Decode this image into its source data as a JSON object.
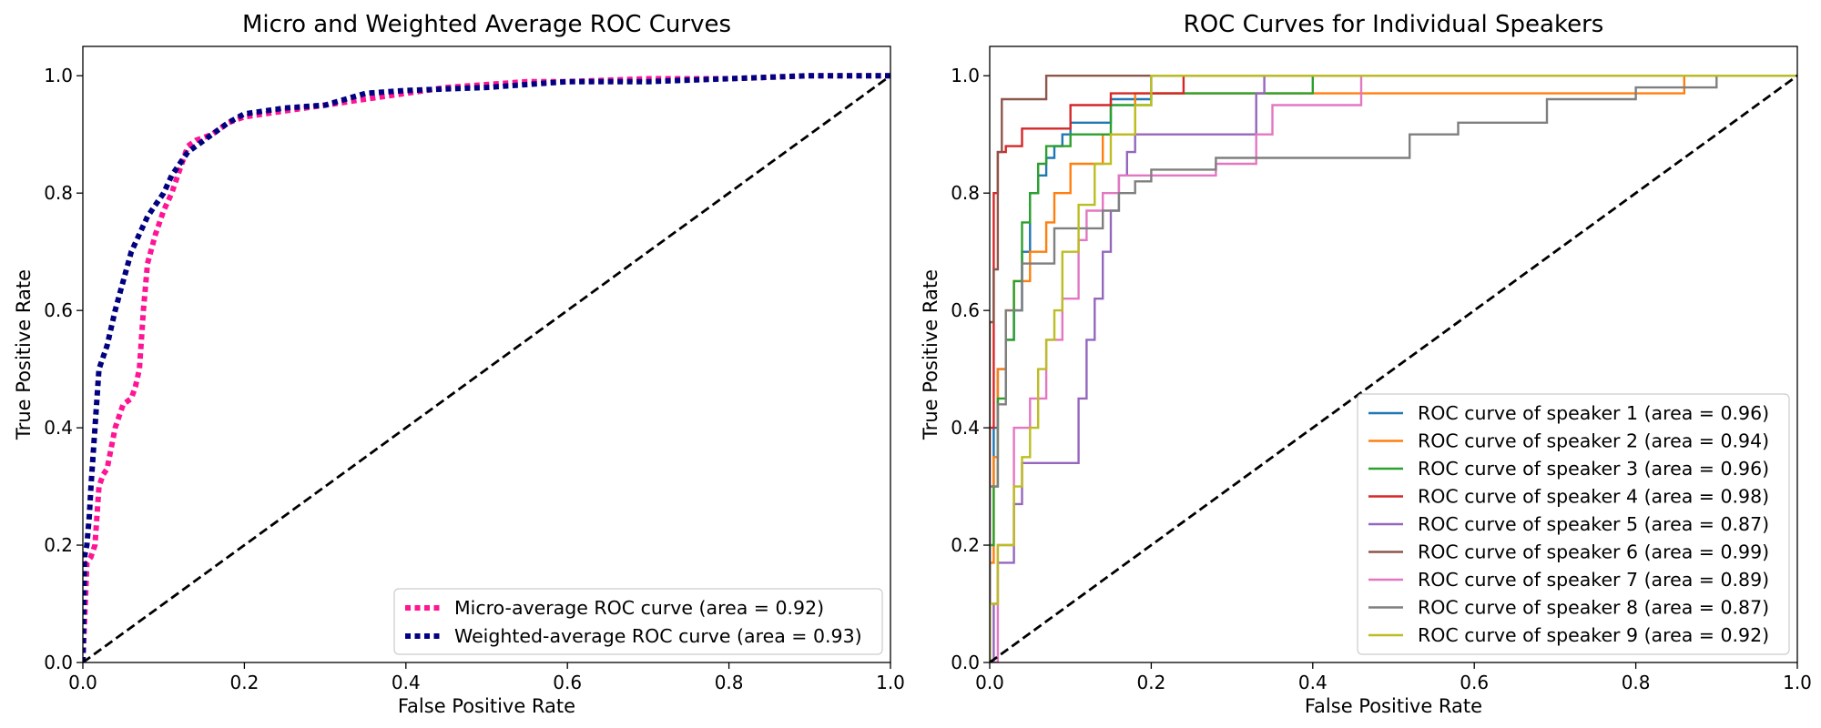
{
  "chart_data": [
    {
      "type": "line",
      "title": "Micro and Weighted Average ROC Curves",
      "xlabel": "False Positive Rate",
      "ylabel": "True Positive Rate",
      "xlim": [
        0.0,
        1.0
      ],
      "ylim": [
        0.0,
        1.05
      ],
      "xticks": [
        "0.0",
        "0.2",
        "0.4",
        "0.6",
        "0.8",
        "1.0"
      ],
      "yticks": [
        "0.0",
        "0.2",
        "0.4",
        "0.6",
        "0.8",
        "1.0"
      ],
      "grid": false,
      "legend_position": "lower-right",
      "series": [
        {
          "name": "Micro-average ROC curve (area = 0.92)",
          "color": "#ff1493",
          "style": "dotted",
          "x": [
            0,
            0.003,
            0.005,
            0.01,
            0.015,
            0.02,
            0.025,
            0.03,
            0.04,
            0.045,
            0.05,
            0.06,
            0.065,
            0.07,
            0.075,
            0.08,
            0.09,
            0.1,
            0.11,
            0.12,
            0.13,
            0.14,
            0.16,
            0.18,
            0.2,
            0.25,
            0.3,
            0.35,
            0.4,
            0.45,
            0.5,
            0.55,
            0.6,
            0.7,
            0.8,
            0.9,
            1.0
          ],
          "y": [
            0,
            0.1,
            0.17,
            0.18,
            0.2,
            0.3,
            0.32,
            0.33,
            0.4,
            0.42,
            0.44,
            0.45,
            0.47,
            0.5,
            0.6,
            0.68,
            0.73,
            0.77,
            0.8,
            0.84,
            0.88,
            0.89,
            0.9,
            0.92,
            0.93,
            0.94,
            0.95,
            0.96,
            0.97,
            0.98,
            0.985,
            0.99,
            0.99,
            0.995,
            0.995,
            1.0,
            1.0
          ]
        },
        {
          "name": "Weighted-average ROC curve (area = 0.93)",
          "color": "#000080",
          "style": "dotted",
          "x": [
            0,
            0.002,
            0.005,
            0.008,
            0.01,
            0.015,
            0.02,
            0.03,
            0.04,
            0.05,
            0.06,
            0.07,
            0.08,
            0.09,
            0.1,
            0.11,
            0.12,
            0.13,
            0.15,
            0.18,
            0.2,
            0.25,
            0.3,
            0.35,
            0.4,
            0.5,
            0.6,
            0.7,
            0.8,
            0.9,
            1.0
          ],
          "y": [
            0,
            0.18,
            0.2,
            0.25,
            0.3,
            0.4,
            0.5,
            0.54,
            0.6,
            0.65,
            0.7,
            0.73,
            0.76,
            0.78,
            0.8,
            0.83,
            0.85,
            0.87,
            0.89,
            0.92,
            0.935,
            0.945,
            0.95,
            0.97,
            0.975,
            0.98,
            0.99,
            0.99,
            0.995,
            1.0,
            1.0
          ]
        },
        {
          "name": "",
          "color": "#000000",
          "style": "dashed",
          "x": [
            0,
            1
          ],
          "y": [
            0,
            1
          ]
        }
      ]
    },
    {
      "type": "line",
      "title": "ROC Curves for Individual Speakers",
      "xlabel": "False Positive Rate",
      "ylabel": "True Positive Rate",
      "xlim": [
        0.0,
        1.0
      ],
      "ylim": [
        0.0,
        1.05
      ],
      "xticks": [
        "0.0",
        "0.2",
        "0.4",
        "0.6",
        "0.8",
        "1.0"
      ],
      "yticks": [
        "0.0",
        "0.2",
        "0.4",
        "0.6",
        "0.8",
        "1.0"
      ],
      "grid": false,
      "legend_position": "lower-right",
      "series": [
        {
          "name": "ROC curve of speaker 1 (area = 0.96)",
          "color": "#1f77b4",
          "style": "solid",
          "x": [
            0,
            0,
            0.005,
            0.005,
            0.01,
            0.01,
            0.02,
            0.02,
            0.03,
            0.03,
            0.04,
            0.04,
            0.05,
            0.05,
            0.06,
            0.06,
            0.07,
            0.07,
            0.08,
            0.08,
            0.09,
            0.09,
            0.1,
            0.1,
            0.15,
            0.15,
            0.2,
            0.2,
            1.0
          ],
          "y": [
            0,
            0.3,
            0.3,
            0.4,
            0.4,
            0.5,
            0.5,
            0.55,
            0.55,
            0.6,
            0.6,
            0.7,
            0.7,
            0.8,
            0.8,
            0.83,
            0.83,
            0.86,
            0.86,
            0.88,
            0.88,
            0.9,
            0.9,
            0.92,
            0.92,
            0.96,
            0.96,
            1.0,
            1.0
          ]
        },
        {
          "name": "ROC curve of speaker 2 (area = 0.94)",
          "color": "#ff7f0e",
          "style": "solid",
          "x": [
            0,
            0,
            0.005,
            0.005,
            0.01,
            0.01,
            0.02,
            0.02,
            0.03,
            0.03,
            0.05,
            0.05,
            0.07,
            0.07,
            0.08,
            0.08,
            0.1,
            0.1,
            0.14,
            0.14,
            0.18,
            0.18,
            0.86,
            0.86,
            1.0
          ],
          "y": [
            0,
            0.17,
            0.17,
            0.35,
            0.35,
            0.5,
            0.5,
            0.6,
            0.6,
            0.65,
            0.65,
            0.7,
            0.7,
            0.75,
            0.75,
            0.8,
            0.8,
            0.85,
            0.85,
            0.9,
            0.9,
            0.97,
            0.97,
            1.0,
            1.0
          ]
        },
        {
          "name": "ROC curve of speaker 3 (area = 0.96)",
          "color": "#2ca02c",
          "style": "solid",
          "x": [
            0,
            0,
            0.005,
            0.005,
            0.01,
            0.01,
            0.02,
            0.02,
            0.03,
            0.03,
            0.04,
            0.04,
            0.05,
            0.05,
            0.06,
            0.06,
            0.07,
            0.07,
            0.1,
            0.1,
            0.15,
            0.15,
            0.2,
            0.2,
            0.4,
            0.4,
            1.0
          ],
          "y": [
            0,
            0.2,
            0.2,
            0.3,
            0.3,
            0.45,
            0.45,
            0.55,
            0.55,
            0.65,
            0.65,
            0.75,
            0.75,
            0.8,
            0.8,
            0.85,
            0.85,
            0.88,
            0.88,
            0.9,
            0.9,
            0.95,
            0.95,
            0.97,
            0.97,
            1.0,
            1.0
          ]
        },
        {
          "name": "ROC curve of speaker 4 (area = 0.98)",
          "color": "#d62728",
          "style": "solid",
          "x": [
            0,
            0,
            0.005,
            0.005,
            0.01,
            0.01,
            0.02,
            0.02,
            0.04,
            0.04,
            0.1,
            0.1,
            0.15,
            0.15,
            0.24,
            0.24,
            1.0
          ],
          "y": [
            0,
            0.4,
            0.4,
            0.8,
            0.8,
            0.87,
            0.87,
            0.88,
            0.88,
            0.91,
            0.91,
            0.95,
            0.95,
            0.97,
            0.97,
            1.0,
            1.0
          ]
        },
        {
          "name": "ROC curve of speaker 5 (area = 0.87)",
          "color": "#9467bd",
          "style": "solid",
          "x": [
            0,
            0.005,
            0.005,
            0.01,
            0.01,
            0.03,
            0.03,
            0.04,
            0.04,
            0.07,
            0.07,
            0.11,
            0.11,
            0.12,
            0.12,
            0.13,
            0.13,
            0.14,
            0.14,
            0.15,
            0.15,
            0.16,
            0.16,
            0.17,
            0.17,
            0.18,
            0.18,
            0.33,
            0.33,
            0.34,
            0.34,
            1.0
          ],
          "y": [
            0,
            0,
            0.1,
            0.1,
            0.17,
            0.17,
            0.27,
            0.27,
            0.34,
            0.34,
            0.34,
            0.34,
            0.45,
            0.45,
            0.55,
            0.55,
            0.62,
            0.62,
            0.7,
            0.7,
            0.77,
            0.77,
            0.83,
            0.83,
            0.87,
            0.87,
            0.9,
            0.9,
            0.97,
            0.97,
            1.0,
            1.0
          ]
        },
        {
          "name": "ROC curve of speaker 6 (area = 0.99)",
          "color": "#8c564b",
          "style": "solid",
          "x": [
            0,
            0,
            0.005,
            0.005,
            0.01,
            0.01,
            0.015,
            0.015,
            0.07,
            0.07,
            1.0
          ],
          "y": [
            0,
            0.58,
            0.58,
            0.67,
            0.67,
            0.87,
            0.87,
            0.96,
            0.96,
            1.0,
            1.0
          ]
        },
        {
          "name": "ROC curve of speaker 7 (area = 0.89)",
          "color": "#e377c2",
          "style": "solid",
          "x": [
            0,
            0.01,
            0.01,
            0.03,
            0.03,
            0.05,
            0.05,
            0.07,
            0.07,
            0.09,
            0.09,
            0.11,
            0.11,
            0.12,
            0.12,
            0.14,
            0.14,
            0.16,
            0.16,
            0.28,
            0.28,
            0.33,
            0.33,
            0.35,
            0.35,
            0.46,
            0.46,
            1.0
          ],
          "y": [
            0,
            0,
            0.2,
            0.2,
            0.4,
            0.4,
            0.45,
            0.45,
            0.55,
            0.55,
            0.62,
            0.62,
            0.72,
            0.72,
            0.77,
            0.77,
            0.8,
            0.8,
            0.83,
            0.83,
            0.85,
            0.85,
            0.9,
            0.9,
            0.95,
            0.95,
            1.0,
            1.0
          ]
        },
        {
          "name": "ROC curve of speaker 8 (area = 0.87)",
          "color": "#7f7f7f",
          "style": "solid",
          "x": [
            0,
            0,
            0.01,
            0.01,
            0.02,
            0.02,
            0.04,
            0.04,
            0.08,
            0.08,
            0.14,
            0.14,
            0.16,
            0.16,
            0.18,
            0.18,
            0.2,
            0.2,
            0.28,
            0.28,
            0.52,
            0.52,
            0.58,
            0.58,
            0.69,
            0.69,
            0.8,
            0.8,
            0.9,
            0.9,
            1.0
          ],
          "y": [
            0,
            0.3,
            0.3,
            0.44,
            0.44,
            0.6,
            0.6,
            0.68,
            0.68,
            0.74,
            0.74,
            0.77,
            0.77,
            0.8,
            0.8,
            0.82,
            0.82,
            0.84,
            0.84,
            0.86,
            0.86,
            0.9,
            0.9,
            0.92,
            0.92,
            0.96,
            0.96,
            0.98,
            0.98,
            1.0,
            1.0
          ]
        },
        {
          "name": "ROC curve of speaker 9 (area = 0.92)",
          "color": "#bcbd22",
          "style": "solid",
          "x": [
            0,
            0,
            0.01,
            0.01,
            0.03,
            0.03,
            0.04,
            0.04,
            0.05,
            0.05,
            0.06,
            0.06,
            0.07,
            0.07,
            0.08,
            0.08,
            0.09,
            0.09,
            0.11,
            0.11,
            0.13,
            0.13,
            0.15,
            0.15,
            0.18,
            0.18,
            0.2,
            0.2,
            1.0
          ],
          "y": [
            0,
            0.1,
            0.1,
            0.2,
            0.2,
            0.3,
            0.3,
            0.35,
            0.35,
            0.4,
            0.4,
            0.5,
            0.5,
            0.55,
            0.55,
            0.6,
            0.6,
            0.7,
            0.7,
            0.78,
            0.78,
            0.85,
            0.85,
            0.9,
            0.9,
            0.95,
            0.95,
            1.0,
            1.0
          ]
        },
        {
          "name": "",
          "color": "#000000",
          "style": "dashed",
          "x": [
            0,
            1
          ],
          "y": [
            0,
            1
          ]
        }
      ]
    }
  ]
}
